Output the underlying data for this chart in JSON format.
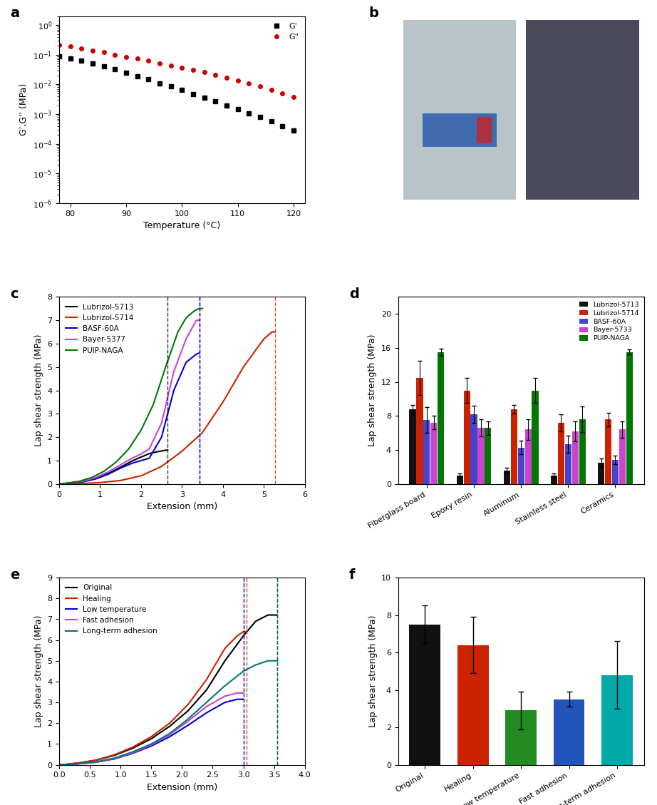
{
  "panel_a": {
    "temp": [
      78,
      80,
      82,
      84,
      86,
      88,
      90,
      92,
      94,
      96,
      98,
      100,
      102,
      104,
      106,
      108,
      110,
      112,
      114,
      116,
      118,
      120
    ],
    "G_prime": [
      0.09,
      0.075,
      0.062,
      0.05,
      0.04,
      0.032,
      0.025,
      0.019,
      0.015,
      0.011,
      0.0085,
      0.0065,
      0.0048,
      0.0036,
      0.0027,
      0.0019,
      0.00145,
      0.00108,
      0.00079,
      0.00057,
      0.0004,
      0.00028
    ],
    "G_double_prime": [
      0.22,
      0.19,
      0.165,
      0.14,
      0.12,
      0.1,
      0.086,
      0.073,
      0.062,
      0.052,
      0.044,
      0.037,
      0.031,
      0.026,
      0.021,
      0.017,
      0.0138,
      0.011,
      0.0086,
      0.0067,
      0.0051,
      0.0038
    ],
    "ylabel": "G',G'' (MPa)",
    "xlabel": "Temperature (°C)",
    "xlim": [
      78,
      122
    ],
    "xticks": [
      80,
      90,
      100,
      110,
      120
    ],
    "yticks": [
      1e-06,
      1e-05,
      0.0001,
      0.001,
      0.01,
      0.1,
      1.0
    ],
    "color_G_prime": "#000000",
    "color_G_double_prime": "#cc0000",
    "legend_G_prime": "G'",
    "legend_G_double_prime": "G\""
  },
  "panel_c": {
    "xlabel": "Extension (mm)",
    "ylabel": "Lap shear strength (MPa)",
    "xlim": [
      0,
      6
    ],
    "ylim": [
      0,
      8
    ],
    "xticks": [
      0,
      1,
      2,
      3,
      4,
      5,
      6
    ],
    "yticks": [
      0,
      1,
      2,
      3,
      4,
      5,
      6,
      7,
      8
    ],
    "curves": {
      "Lubrizol-5713": {
        "color": "#000000",
        "x": [
          0,
          0.3,
          0.6,
          0.9,
          1.2,
          1.5,
          1.8,
          2.0,
          2.2,
          2.4,
          2.58,
          2.65
        ],
        "y": [
          0,
          0.05,
          0.12,
          0.25,
          0.45,
          0.72,
          1.0,
          1.15,
          1.3,
          1.38,
          1.44,
          1.45
        ]
      },
      "Lubrizol-5714": {
        "color": "#cc2200",
        "x": [
          0,
          0.5,
          1.0,
          1.5,
          2.0,
          2.5,
          3.0,
          3.5,
          4.0,
          4.5,
          5.0,
          5.2,
          5.28
        ],
        "y": [
          0,
          0.02,
          0.06,
          0.15,
          0.35,
          0.75,
          1.4,
          2.2,
          3.5,
          5.0,
          6.2,
          6.5,
          6.5
        ]
      },
      "BASF-60A": {
        "color": "#0000cc",
        "x": [
          0,
          0.3,
          0.6,
          0.9,
          1.2,
          1.5,
          1.8,
          2.0,
          2.2,
          2.5,
          2.8,
          3.1,
          3.35,
          3.42
        ],
        "y": [
          0,
          0.04,
          0.1,
          0.22,
          0.42,
          0.68,
          0.9,
          1.0,
          1.1,
          2.0,
          4.0,
          5.2,
          5.55,
          5.6
        ]
      },
      "Bayer-5377": {
        "color": "#cc44cc",
        "x": [
          0,
          0.3,
          0.6,
          0.9,
          1.2,
          1.5,
          1.8,
          2.0,
          2.2,
          2.5,
          2.8,
          3.1,
          3.35,
          3.42
        ],
        "y": [
          0,
          0.05,
          0.13,
          0.28,
          0.52,
          0.82,
          1.12,
          1.28,
          1.5,
          2.6,
          4.8,
          6.2,
          7.0,
          7.0
        ]
      },
      "PUIP-NAGA": {
        "color": "#007700",
        "x": [
          0,
          0.2,
          0.5,
          0.8,
          1.1,
          1.4,
          1.7,
          2.0,
          2.3,
          2.6,
          2.9,
          3.1,
          3.3,
          3.42,
          3.5
        ],
        "y": [
          0,
          0.04,
          0.12,
          0.28,
          0.55,
          0.95,
          1.5,
          2.3,
          3.4,
          5.0,
          6.5,
          7.1,
          7.4,
          7.5,
          7.5
        ]
      }
    },
    "vlines": [
      {
        "x": 2.65,
        "color": "#000000"
      },
      {
        "x": 3.42,
        "color": "#007700"
      },
      {
        "x": 3.42,
        "color": "#cc44cc"
      },
      {
        "x": 3.42,
        "color": "#0000cc"
      },
      {
        "x": 5.28,
        "color": "#cc2200"
      }
    ]
  },
  "panel_d": {
    "categories": [
      "Fiberglass board",
      "Epoxy resin",
      "Aluminum",
      "Stainless steel",
      "Ceramics"
    ],
    "series": {
      "Lubrizol-5713": {
        "color": "#111111",
        "values": [
          8.8,
          1.0,
          1.6,
          1.0,
          2.5
        ],
        "errors": [
          0.5,
          0.2,
          0.3,
          0.2,
          0.5
        ]
      },
      "Lubrizol-5714": {
        "color": "#cc2200",
        "values": [
          12.5,
          11.0,
          8.8,
          7.2,
          7.6
        ],
        "errors": [
          2.0,
          1.5,
          0.5,
          1.0,
          0.8
        ]
      },
      "BASF-60A": {
        "color": "#4444cc",
        "values": [
          7.5,
          8.2,
          4.3,
          4.7,
          2.8
        ],
        "errors": [
          1.5,
          1.0,
          0.8,
          1.0,
          0.5
        ]
      },
      "Bayer-5733": {
        "color": "#cc44cc",
        "values": [
          7.2,
          6.6,
          6.4,
          6.2,
          6.4
        ],
        "errors": [
          0.8,
          1.0,
          1.2,
          1.2,
          1.0
        ]
      },
      "PUIP-NAGA": {
        "color": "#007700",
        "values": [
          15.5,
          6.6,
          11.0,
          7.6,
          15.5
        ],
        "errors": [
          0.4,
          0.8,
          1.5,
          1.5,
          0.3
        ]
      }
    },
    "ylabel": "Lap shear strength (MPa)",
    "ylim": [
      0,
      22
    ],
    "yticks": [
      0,
      4,
      8,
      12,
      16,
      20
    ]
  },
  "panel_e": {
    "xlabel": "Extension (mm)",
    "ylabel": "Lap shear strength (MPa)",
    "xlim": [
      0,
      4.0
    ],
    "ylim": [
      0,
      9
    ],
    "xticks": [
      0.0,
      0.5,
      1.0,
      1.5,
      2.0,
      2.5,
      3.0,
      3.5,
      4.0
    ],
    "yticks": [
      0,
      1,
      2,
      3,
      4,
      5,
      6,
      7,
      8,
      9
    ],
    "curves": {
      "Original": {
        "color": "#000000",
        "x": [
          0,
          0.1,
          0.3,
          0.6,
          0.9,
          1.2,
          1.5,
          1.8,
          2.1,
          2.4,
          2.7,
          3.0,
          3.2,
          3.4,
          3.5,
          3.55
        ],
        "y": [
          0,
          0.02,
          0.08,
          0.22,
          0.45,
          0.8,
          1.25,
          1.85,
          2.6,
          3.6,
          5.0,
          6.2,
          6.9,
          7.2,
          7.2,
          7.2
        ]
      },
      "Healing": {
        "color": "#cc2200",
        "x": [
          0,
          0.1,
          0.3,
          0.6,
          0.9,
          1.2,
          1.5,
          1.8,
          2.1,
          2.4,
          2.7,
          2.9,
          3.0,
          3.05
        ],
        "y": [
          0,
          0.02,
          0.08,
          0.22,
          0.48,
          0.85,
          1.35,
          2.0,
          2.9,
          4.1,
          5.6,
          6.2,
          6.4,
          6.4
        ]
      },
      "Low temperature": {
        "color": "#0000cc",
        "x": [
          0,
          0.1,
          0.3,
          0.6,
          0.9,
          1.2,
          1.5,
          1.8,
          2.1,
          2.4,
          2.7,
          2.9,
          3.0
        ],
        "y": [
          0,
          0.01,
          0.04,
          0.12,
          0.28,
          0.55,
          0.9,
          1.35,
          1.9,
          2.5,
          3.0,
          3.15,
          3.15
        ]
      },
      "Fast adhesion": {
        "color": "#cc44cc",
        "x": [
          0,
          0.1,
          0.3,
          0.6,
          0.9,
          1.2,
          1.5,
          1.8,
          2.1,
          2.4,
          2.7,
          2.9,
          3.0
        ],
        "y": [
          0,
          0.01,
          0.04,
          0.12,
          0.3,
          0.58,
          0.95,
          1.45,
          2.1,
          2.8,
          3.3,
          3.45,
          3.45
        ]
      },
      "Long-term adhesion": {
        "color": "#007777",
        "x": [
          0,
          0.1,
          0.3,
          0.6,
          0.9,
          1.2,
          1.5,
          1.8,
          2.1,
          2.4,
          2.7,
          3.0,
          3.2,
          3.4,
          3.5,
          3.55
        ],
        "y": [
          0,
          0.01,
          0.05,
          0.14,
          0.32,
          0.62,
          1.0,
          1.5,
          2.2,
          3.0,
          3.8,
          4.5,
          4.8,
          5.0,
          5.0,
          5.0
        ]
      }
    },
    "vlines": [
      {
        "x": 3.05,
        "color": "#cc2200"
      },
      {
        "x": 3.0,
        "color": "#cc44cc"
      },
      {
        "x": 3.0,
        "color": "#0000cc"
      },
      {
        "x": 3.55,
        "color": "#000000"
      },
      {
        "x": 3.55,
        "color": "#007777"
      }
    ]
  },
  "panel_f": {
    "categories": [
      "Original",
      "Healing",
      "Low temperature",
      "Fast adhesion",
      "Long-term adhesion"
    ],
    "values": [
      7.5,
      6.4,
      2.9,
      3.5,
      4.8
    ],
    "errors": [
      1.0,
      1.5,
      1.0,
      0.4,
      1.8
    ],
    "colors": [
      "#111111",
      "#cc2200",
      "#228B22",
      "#2255bb",
      "#00aaaa"
    ],
    "ylabel": "Lap shear strength (MPa)",
    "ylim": [
      0,
      10
    ],
    "yticks": [
      0,
      2,
      4,
      6,
      8,
      10
    ]
  }
}
